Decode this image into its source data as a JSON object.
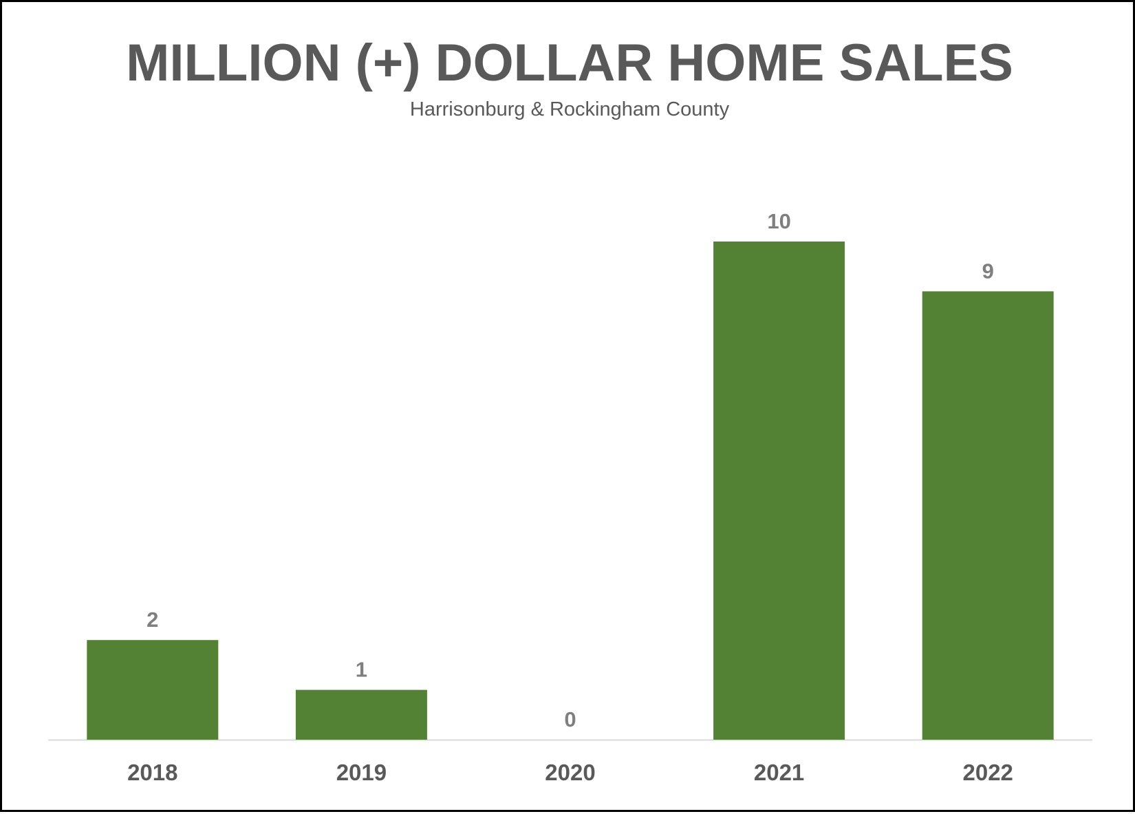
{
  "chart_data": {
    "type": "bar",
    "title": "MILLION (+) DOLLAR HOME SALES",
    "subtitle": "Harrisonburg & Rockingham County",
    "xlabel": "",
    "ylabel": "",
    "categories": [
      "2018",
      "2019",
      "2020",
      "2021",
      "2022"
    ],
    "values": [
      2,
      1,
      0,
      10,
      9
    ],
    "ylim": [
      0,
      10
    ],
    "grid": false,
    "legend": "none",
    "data_labels": true,
    "bar_color": "#548235",
    "label_color": "#7f7f7f",
    "text_color": "#595959",
    "axis_color": "#d9d9d9"
  }
}
